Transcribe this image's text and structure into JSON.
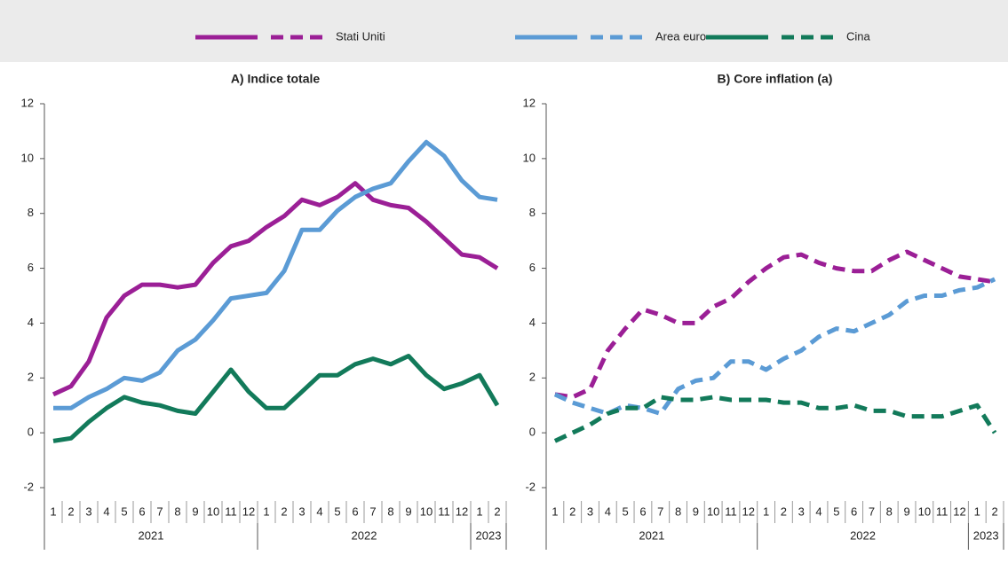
{
  "chart_data": [
    {
      "type": "line",
      "title": "A) Indice totale",
      "categories": [
        "1",
        "2",
        "3",
        "4",
        "5",
        "6",
        "7",
        "8",
        "9",
        "10",
        "11",
        "12",
        "1",
        "2",
        "3",
        "4",
        "5",
        "6",
        "7",
        "8",
        "9",
        "10",
        "11",
        "12",
        "1",
        "2"
      ],
      "year_groups": [
        {
          "label": "2021",
          "span": 12
        },
        {
          "label": "2022",
          "span": 12
        },
        {
          "label": "2023",
          "span": 2
        }
      ],
      "ylim": [
        -2,
        12
      ],
      "yticks": [
        -2,
        0,
        2,
        4,
        6,
        8,
        10,
        12
      ],
      "dashed": false,
      "series": [
        {
          "name": "Stati Uniti",
          "color": "#9b1f96",
          "values": [
            1.4,
            1.7,
            2.6,
            4.2,
            5.0,
            5.4,
            5.4,
            5.3,
            5.4,
            6.2,
            6.8,
            7.0,
            7.5,
            7.9,
            8.5,
            8.3,
            8.6,
            9.1,
            8.5,
            8.3,
            8.2,
            7.7,
            7.1,
            6.5,
            6.4,
            6.0
          ]
        },
        {
          "name": "Area euro",
          "color": "#5b9bd5",
          "values": [
            0.9,
            0.9,
            1.3,
            1.6,
            2.0,
            1.9,
            2.2,
            3.0,
            3.4,
            4.1,
            4.9,
            5.0,
            5.1,
            5.9,
            7.4,
            7.4,
            8.1,
            8.6,
            8.9,
            9.1,
            9.9,
            10.6,
            10.1,
            9.2,
            8.6,
            8.5
          ]
        },
        {
          "name": "Cina",
          "color": "#127a5a",
          "values": [
            -0.3,
            -0.2,
            0.4,
            0.9,
            1.3,
            1.1,
            1.0,
            0.8,
            0.7,
            1.5,
            2.3,
            1.5,
            0.9,
            0.9,
            1.5,
            2.1,
            2.1,
            2.5,
            2.7,
            2.5,
            2.8,
            2.1,
            1.6,
            1.8,
            2.1,
            1.0
          ]
        }
      ]
    },
    {
      "type": "line",
      "title": "B) Core inflation (a)",
      "categories": [
        "1",
        "2",
        "3",
        "4",
        "5",
        "6",
        "7",
        "8",
        "9",
        "10",
        "11",
        "12",
        "1",
        "2",
        "3",
        "4",
        "5",
        "6",
        "7",
        "8",
        "9",
        "10",
        "11",
        "12",
        "1",
        "2"
      ],
      "year_groups": [
        {
          "label": "2021",
          "span": 12
        },
        {
          "label": "2022",
          "span": 12
        },
        {
          "label": "2023",
          "span": 2
        }
      ],
      "ylim": [
        -2,
        12
      ],
      "yticks": [
        -2,
        0,
        2,
        4,
        6,
        8,
        10,
        12
      ],
      "dashed": true,
      "series": [
        {
          "color": "#9b1f96",
          "values": [
            1.4,
            1.3,
            1.6,
            3.0,
            3.8,
            4.5,
            4.3,
            4.0,
            4.0,
            4.6,
            4.9,
            5.5,
            6.0,
            6.4,
            6.5,
            6.2,
            6.0,
            5.9,
            5.9,
            6.3,
            6.6,
            6.3,
            6.0,
            5.7,
            5.6,
            5.5
          ]
        },
        {
          "color": "#5b9bd5",
          "values": [
            1.4,
            1.1,
            0.9,
            0.7,
            1.0,
            0.9,
            0.7,
            1.6,
            1.9,
            2.0,
            2.6,
            2.6,
            2.3,
            2.7,
            3.0,
            3.5,
            3.8,
            3.7,
            4.0,
            4.3,
            4.8,
            5.0,
            5.0,
            5.2,
            5.3,
            5.6
          ]
        },
        {
          "color": "#127a5a",
          "values": [
            -0.3,
            0.0,
            0.3,
            0.7,
            0.9,
            0.9,
            1.3,
            1.2,
            1.2,
            1.3,
            1.2,
            1.2,
            1.2,
            1.1,
            1.1,
            0.9,
            0.9,
            1.0,
            0.8,
            0.8,
            0.6,
            0.6,
            0.6,
            0.8,
            1.0,
            0.0
          ]
        }
      ]
    }
  ]
}
